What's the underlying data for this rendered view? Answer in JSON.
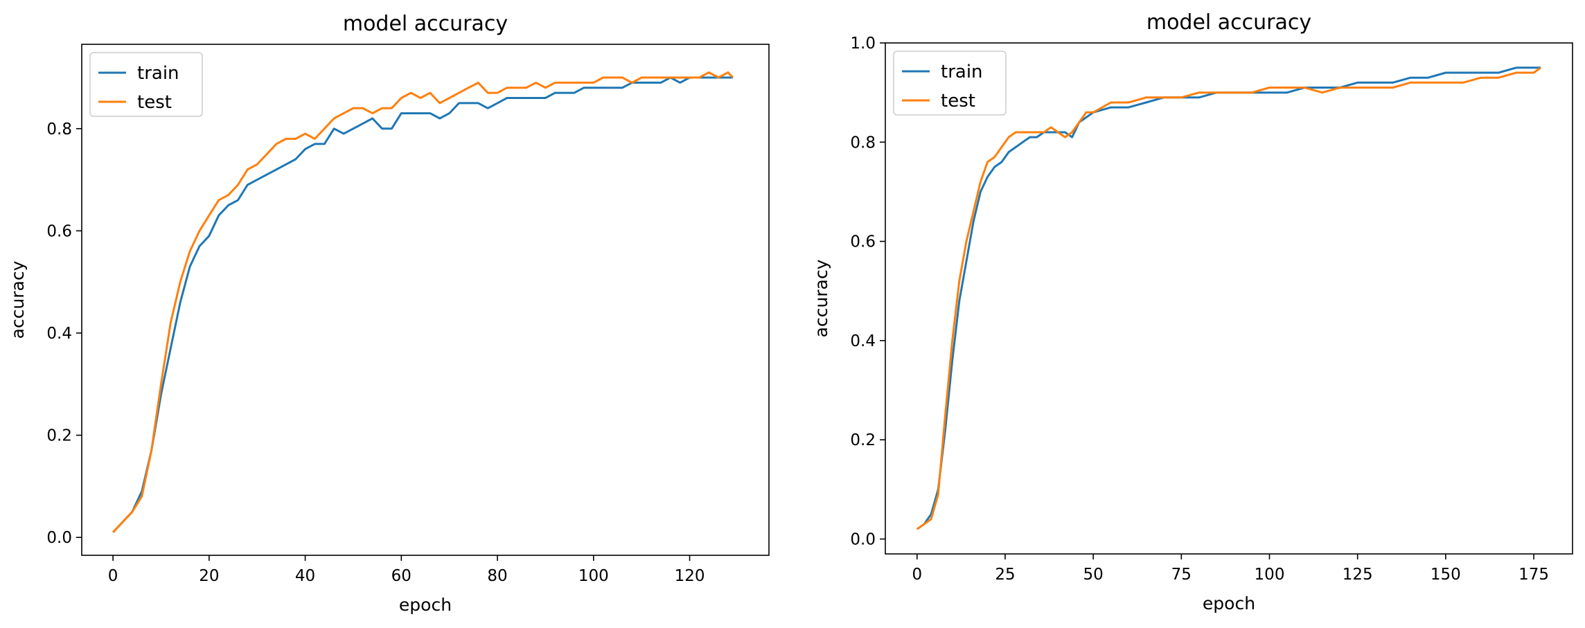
{
  "chart_data": [
    {
      "type": "line",
      "title": "model accuracy",
      "xlabel": "epoch",
      "ylabel": "accuracy",
      "xlim": [
        -6.5,
        136.5
      ],
      "ylim": [
        -0.035,
        0.965
      ],
      "xticks": [
        0,
        20,
        40,
        60,
        80,
        100,
        120
      ],
      "yticks": [
        0.0,
        0.2,
        0.4,
        0.6,
        0.8
      ],
      "ytick_decimals": 1,
      "legend": "upper-left",
      "grid": false,
      "series": [
        {
          "name": "train",
          "color": "#1f77b4",
          "points": [
            [
              0,
              0.01
            ],
            [
              2,
              0.03
            ],
            [
              4,
              0.05
            ],
            [
              6,
              0.09
            ],
            [
              8,
              0.17
            ],
            [
              10,
              0.28
            ],
            [
              12,
              0.37
            ],
            [
              14,
              0.46
            ],
            [
              16,
              0.53
            ],
            [
              18,
              0.57
            ],
            [
              20,
              0.59
            ],
            [
              22,
              0.63
            ],
            [
              24,
              0.65
            ],
            [
              26,
              0.66
            ],
            [
              28,
              0.69
            ],
            [
              30,
              0.7
            ],
            [
              32,
              0.71
            ],
            [
              34,
              0.72
            ],
            [
              36,
              0.73
            ],
            [
              38,
              0.74
            ],
            [
              40,
              0.76
            ],
            [
              42,
              0.77
            ],
            [
              44,
              0.77
            ],
            [
              46,
              0.8
            ],
            [
              48,
              0.79
            ],
            [
              50,
              0.8
            ],
            [
              52,
              0.81
            ],
            [
              54,
              0.82
            ],
            [
              56,
              0.8
            ],
            [
              58,
              0.8
            ],
            [
              60,
              0.83
            ],
            [
              62,
              0.83
            ],
            [
              64,
              0.83
            ],
            [
              66,
              0.83
            ],
            [
              68,
              0.82
            ],
            [
              70,
              0.83
            ],
            [
              72,
              0.85
            ],
            [
              74,
              0.85
            ],
            [
              76,
              0.85
            ],
            [
              78,
              0.84
            ],
            [
              80,
              0.85
            ],
            [
              82,
              0.86
            ],
            [
              84,
              0.86
            ],
            [
              86,
              0.86
            ],
            [
              88,
              0.86
            ],
            [
              90,
              0.86
            ],
            [
              92,
              0.87
            ],
            [
              94,
              0.87
            ],
            [
              96,
              0.87
            ],
            [
              98,
              0.88
            ],
            [
              100,
              0.88
            ],
            [
              102,
              0.88
            ],
            [
              104,
              0.88
            ],
            [
              106,
              0.88
            ],
            [
              108,
              0.89
            ],
            [
              110,
              0.89
            ],
            [
              112,
              0.89
            ],
            [
              114,
              0.89
            ],
            [
              116,
              0.9
            ],
            [
              118,
              0.89
            ],
            [
              120,
              0.9
            ],
            [
              122,
              0.9
            ],
            [
              124,
              0.9
            ],
            [
              126,
              0.9
            ],
            [
              128,
              0.9
            ],
            [
              129,
              0.9
            ]
          ]
        },
        {
          "name": "test",
          "color": "#ff7f0e",
          "points": [
            [
              0,
              0.01
            ],
            [
              2,
              0.03
            ],
            [
              4,
              0.05
            ],
            [
              6,
              0.08
            ],
            [
              8,
              0.17
            ],
            [
              10,
              0.3
            ],
            [
              12,
              0.42
            ],
            [
              14,
              0.5
            ],
            [
              16,
              0.56
            ],
            [
              18,
              0.6
            ],
            [
              20,
              0.63
            ],
            [
              22,
              0.66
            ],
            [
              24,
              0.67
            ],
            [
              26,
              0.69
            ],
            [
              28,
              0.72
            ],
            [
              30,
              0.73
            ],
            [
              32,
              0.75
            ],
            [
              34,
              0.77
            ],
            [
              36,
              0.78
            ],
            [
              38,
              0.78
            ],
            [
              40,
              0.79
            ],
            [
              42,
              0.78
            ],
            [
              44,
              0.8
            ],
            [
              46,
              0.82
            ],
            [
              48,
              0.83
            ],
            [
              50,
              0.84
            ],
            [
              52,
              0.84
            ],
            [
              54,
              0.83
            ],
            [
              56,
              0.84
            ],
            [
              58,
              0.84
            ],
            [
              60,
              0.86
            ],
            [
              62,
              0.87
            ],
            [
              64,
              0.86
            ],
            [
              66,
              0.87
            ],
            [
              68,
              0.85
            ],
            [
              70,
              0.86
            ],
            [
              72,
              0.87
            ],
            [
              74,
              0.88
            ],
            [
              76,
              0.89
            ],
            [
              78,
              0.87
            ],
            [
              80,
              0.87
            ],
            [
              82,
              0.88
            ],
            [
              84,
              0.88
            ],
            [
              86,
              0.88
            ],
            [
              88,
              0.89
            ],
            [
              90,
              0.88
            ],
            [
              92,
              0.89
            ],
            [
              94,
              0.89
            ],
            [
              96,
              0.89
            ],
            [
              98,
              0.89
            ],
            [
              100,
              0.89
            ],
            [
              102,
              0.9
            ],
            [
              104,
              0.9
            ],
            [
              106,
              0.9
            ],
            [
              108,
              0.89
            ],
            [
              110,
              0.9
            ],
            [
              112,
              0.9
            ],
            [
              114,
              0.9
            ],
            [
              116,
              0.9
            ],
            [
              118,
              0.9
            ],
            [
              120,
              0.9
            ],
            [
              122,
              0.9
            ],
            [
              124,
              0.91
            ],
            [
              126,
              0.9
            ],
            [
              128,
              0.91
            ],
            [
              129,
              0.9
            ]
          ]
        }
      ]
    },
    {
      "type": "line",
      "title": "model accuracy",
      "xlabel": "epoch",
      "ylabel": "accuracy",
      "xlim": [
        -9,
        186
      ],
      "ylim": [
        -0.03,
        1.0
      ],
      "xticks": [
        0,
        25,
        50,
        75,
        100,
        125,
        150,
        175
      ],
      "yticks": [
        0.0,
        0.2,
        0.4,
        0.6,
        0.8,
        1.0
      ],
      "ytick_decimals": 1,
      "legend": "upper-left",
      "grid": false,
      "series": [
        {
          "name": "train",
          "color": "#1f77b4",
          "points": [
            [
              0,
              0.02
            ],
            [
              2,
              0.03
            ],
            [
              4,
              0.05
            ],
            [
              6,
              0.1
            ],
            [
              8,
              0.22
            ],
            [
              10,
              0.36
            ],
            [
              12,
              0.48
            ],
            [
              14,
              0.56
            ],
            [
              16,
              0.64
            ],
            [
              18,
              0.7
            ],
            [
              20,
              0.73
            ],
            [
              22,
              0.75
            ],
            [
              24,
              0.76
            ],
            [
              26,
              0.78
            ],
            [
              28,
              0.79
            ],
            [
              30,
              0.8
            ],
            [
              32,
              0.81
            ],
            [
              34,
              0.81
            ],
            [
              36,
              0.82
            ],
            [
              38,
              0.82
            ],
            [
              40,
              0.82
            ],
            [
              42,
              0.82
            ],
            [
              44,
              0.81
            ],
            [
              46,
              0.84
            ],
            [
              48,
              0.85
            ],
            [
              50,
              0.86
            ],
            [
              55,
              0.87
            ],
            [
              60,
              0.87
            ],
            [
              65,
              0.88
            ],
            [
              70,
              0.89
            ],
            [
              75,
              0.89
            ],
            [
              80,
              0.89
            ],
            [
              85,
              0.9
            ],
            [
              90,
              0.9
            ],
            [
              95,
              0.9
            ],
            [
              100,
              0.9
            ],
            [
              105,
              0.9
            ],
            [
              110,
              0.91
            ],
            [
              115,
              0.91
            ],
            [
              120,
              0.91
            ],
            [
              125,
              0.92
            ],
            [
              130,
              0.92
            ],
            [
              135,
              0.92
            ],
            [
              140,
              0.93
            ],
            [
              145,
              0.93
            ],
            [
              150,
              0.94
            ],
            [
              155,
              0.94
            ],
            [
              160,
              0.94
            ],
            [
              165,
              0.94
            ],
            [
              170,
              0.95
            ],
            [
              175,
              0.95
            ],
            [
              177,
              0.95
            ]
          ]
        },
        {
          "name": "test",
          "color": "#ff7f0e",
          "points": [
            [
              0,
              0.02
            ],
            [
              2,
              0.03
            ],
            [
              4,
              0.04
            ],
            [
              6,
              0.09
            ],
            [
              8,
              0.25
            ],
            [
              10,
              0.4
            ],
            [
              12,
              0.52
            ],
            [
              14,
              0.6
            ],
            [
              16,
              0.66
            ],
            [
              18,
              0.72
            ],
            [
              20,
              0.76
            ],
            [
              22,
              0.77
            ],
            [
              24,
              0.79
            ],
            [
              26,
              0.81
            ],
            [
              28,
              0.82
            ],
            [
              30,
              0.82
            ],
            [
              32,
              0.82
            ],
            [
              34,
              0.82
            ],
            [
              36,
              0.82
            ],
            [
              38,
              0.83
            ],
            [
              40,
              0.82
            ],
            [
              42,
              0.81
            ],
            [
              44,
              0.82
            ],
            [
              46,
              0.84
            ],
            [
              48,
              0.86
            ],
            [
              50,
              0.86
            ],
            [
              55,
              0.88
            ],
            [
              60,
              0.88
            ],
            [
              65,
              0.89
            ],
            [
              70,
              0.89
            ],
            [
              75,
              0.89
            ],
            [
              80,
              0.9
            ],
            [
              85,
              0.9
            ],
            [
              90,
              0.9
            ],
            [
              95,
              0.9
            ],
            [
              100,
              0.91
            ],
            [
              105,
              0.91
            ],
            [
              110,
              0.91
            ],
            [
              115,
              0.9
            ],
            [
              120,
              0.91
            ],
            [
              125,
              0.91
            ],
            [
              130,
              0.91
            ],
            [
              135,
              0.91
            ],
            [
              140,
              0.92
            ],
            [
              145,
              0.92
            ],
            [
              150,
              0.92
            ],
            [
              155,
              0.92
            ],
            [
              160,
              0.93
            ],
            [
              165,
              0.93
            ],
            [
              170,
              0.94
            ],
            [
              175,
              0.94
            ],
            [
              177,
              0.95
            ]
          ]
        }
      ]
    }
  ]
}
